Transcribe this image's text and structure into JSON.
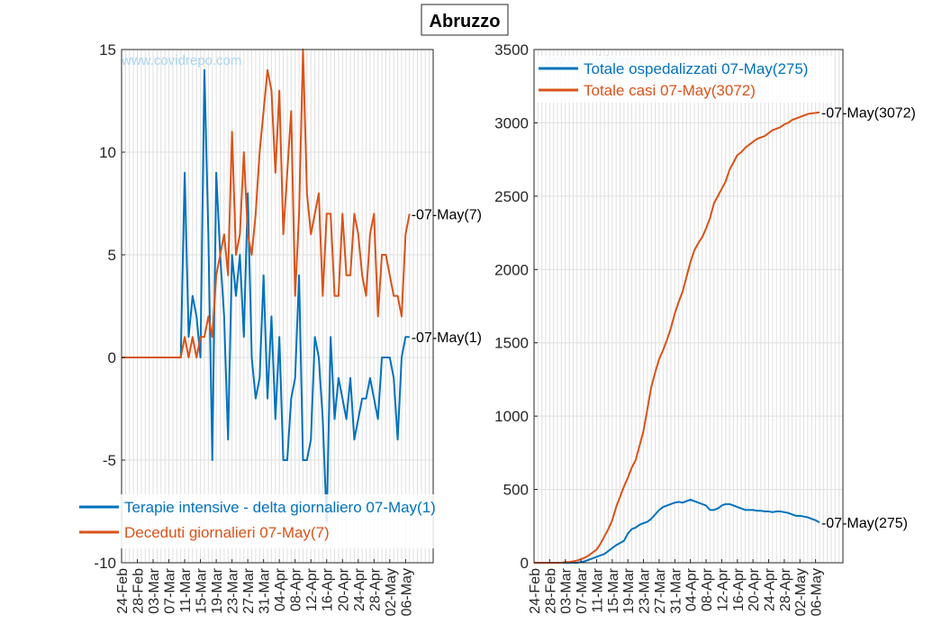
{
  "title": "Abruzzo",
  "watermark": "www.covidrepo.com",
  "colors": {
    "blue": "#0072BD",
    "orange": "#D95319"
  },
  "chart_data": [
    {
      "type": "line",
      "x_tick_labels": [
        "24-Feb",
        "28-Feb",
        "03-Mar",
        "07-Mar",
        "11-Mar",
        "15-Mar",
        "19-Mar",
        "23-Mar",
        "27-Mar",
        "31-Mar",
        "04-Apr",
        "08-Apr",
        "12-Apr",
        "16-Apr",
        "20-Apr",
        "24-Apr",
        "28-Apr",
        "02-May",
        "06-May"
      ],
      "x_range": [
        "24-Feb",
        "13-May"
      ],
      "ylim": [
        -10,
        15
      ],
      "y_ticks": [
        -10,
        -5,
        0,
        5,
        10,
        15
      ],
      "grid": true,
      "legend_position": "bottom-left",
      "series": [
        {
          "name": "Terapie intensive - delta giornaliero 07-May(1)",
          "color": "#0072BD",
          "end_label": "-07-May(1)",
          "values": [
            0,
            0,
            0,
            0,
            0,
            0,
            0,
            0,
            0,
            0,
            0,
            0,
            0,
            0,
            0,
            0,
            9,
            1,
            3,
            2,
            0,
            14,
            6,
            -5,
            9,
            5,
            2,
            -4,
            5,
            3,
            5,
            1,
            8,
            0,
            -2,
            -1,
            4,
            -2,
            2,
            -3,
            1,
            -5,
            -5,
            -2,
            -1,
            4,
            -5,
            -5,
            -4,
            1,
            0,
            -3,
            -8,
            1,
            -3,
            -1,
            -2,
            -3,
            -1,
            -4,
            -3,
            -2,
            -2,
            -1,
            -2,
            -3,
            0,
            0,
            0,
            -1,
            -4,
            0,
            1,
            1
          ],
          "dates_last": "07-May"
        },
        {
          "name": "Deceduti giornalieri 07-May(7)",
          "color": "#D95319",
          "end_label": "-07-May(7)",
          "values": [
            0,
            0,
            0,
            0,
            0,
            0,
            0,
            0,
            0,
            0,
            0,
            0,
            0,
            0,
            0,
            0,
            1,
            0,
            1,
            0,
            1,
            1,
            2,
            1,
            4,
            5,
            6,
            4,
            11,
            5,
            6,
            10,
            6,
            5,
            7,
            10,
            12,
            14,
            13,
            9,
            13,
            6,
            9,
            12,
            3,
            7,
            15,
            8,
            6,
            7,
            8,
            3,
            7,
            7,
            3,
            3,
            7,
            4,
            4,
            7,
            6,
            4,
            3,
            6,
            7,
            2,
            5,
            5,
            4,
            3,
            3,
            2,
            6,
            7
          ],
          "dates_last": "07-May"
        }
      ]
    },
    {
      "type": "line",
      "x_tick_labels": [
        "24-Feb",
        "28-Feb",
        "03-Mar",
        "07-Mar",
        "11-Mar",
        "15-Mar",
        "19-Mar",
        "23-Mar",
        "27-Mar",
        "31-Mar",
        "04-Apr",
        "08-Apr",
        "12-Apr",
        "16-Apr",
        "20-Apr",
        "24-Apr",
        "28-Apr",
        "02-May",
        "06-May"
      ],
      "x_range": [
        "24-Feb",
        "13-May"
      ],
      "ylim": [
        0,
        3500
      ],
      "y_ticks": [
        0,
        500,
        1000,
        1500,
        2000,
        2500,
        3000,
        3500
      ],
      "grid": true,
      "legend_position": "top-left",
      "series": [
        {
          "name": "Totale ospedalizzati 07-May(275)",
          "color": "#0072BD",
          "end_label": "-07-May(275)",
          "values": [
            0,
            0,
            0,
            0,
            0,
            0,
            0,
            0,
            0,
            0,
            0,
            0,
            5,
            10,
            20,
            30,
            40,
            50,
            60,
            80,
            100,
            120,
            135,
            150,
            200,
            230,
            240,
            260,
            270,
            280,
            300,
            330,
            360,
            380,
            390,
            400,
            410,
            415,
            410,
            420,
            430,
            420,
            410,
            400,
            390,
            360,
            360,
            370,
            390,
            400,
            400,
            390,
            380,
            370,
            360,
            360,
            360,
            355,
            355,
            350,
            350,
            345,
            350,
            350,
            345,
            340,
            330,
            320,
            320,
            315,
            310,
            300,
            290,
            275
          ]
        },
        {
          "name": "Totale casi 07-May(3072)",
          "color": "#D95319",
          "end_label": "-07-May(3072)",
          "values": [
            0,
            0,
            0,
            0,
            0,
            0,
            0,
            0,
            5,
            5,
            10,
            15,
            25,
            35,
            50,
            70,
            90,
            130,
            180,
            230,
            290,
            380,
            450,
            520,
            580,
            650,
            700,
            800,
            900,
            1050,
            1200,
            1300,
            1390,
            1450,
            1520,
            1600,
            1700,
            1780,
            1850,
            1950,
            2050,
            2130,
            2180,
            2220,
            2280,
            2350,
            2450,
            2500,
            2550,
            2600,
            2680,
            2730,
            2780,
            2800,
            2830,
            2850,
            2870,
            2890,
            2900,
            2910,
            2930,
            2950,
            2960,
            2970,
            2990,
            3000,
            3020,
            3030,
            3040,
            3050,
            3060,
            3065,
            3068,
            3072
          ]
        }
      ]
    }
  ]
}
